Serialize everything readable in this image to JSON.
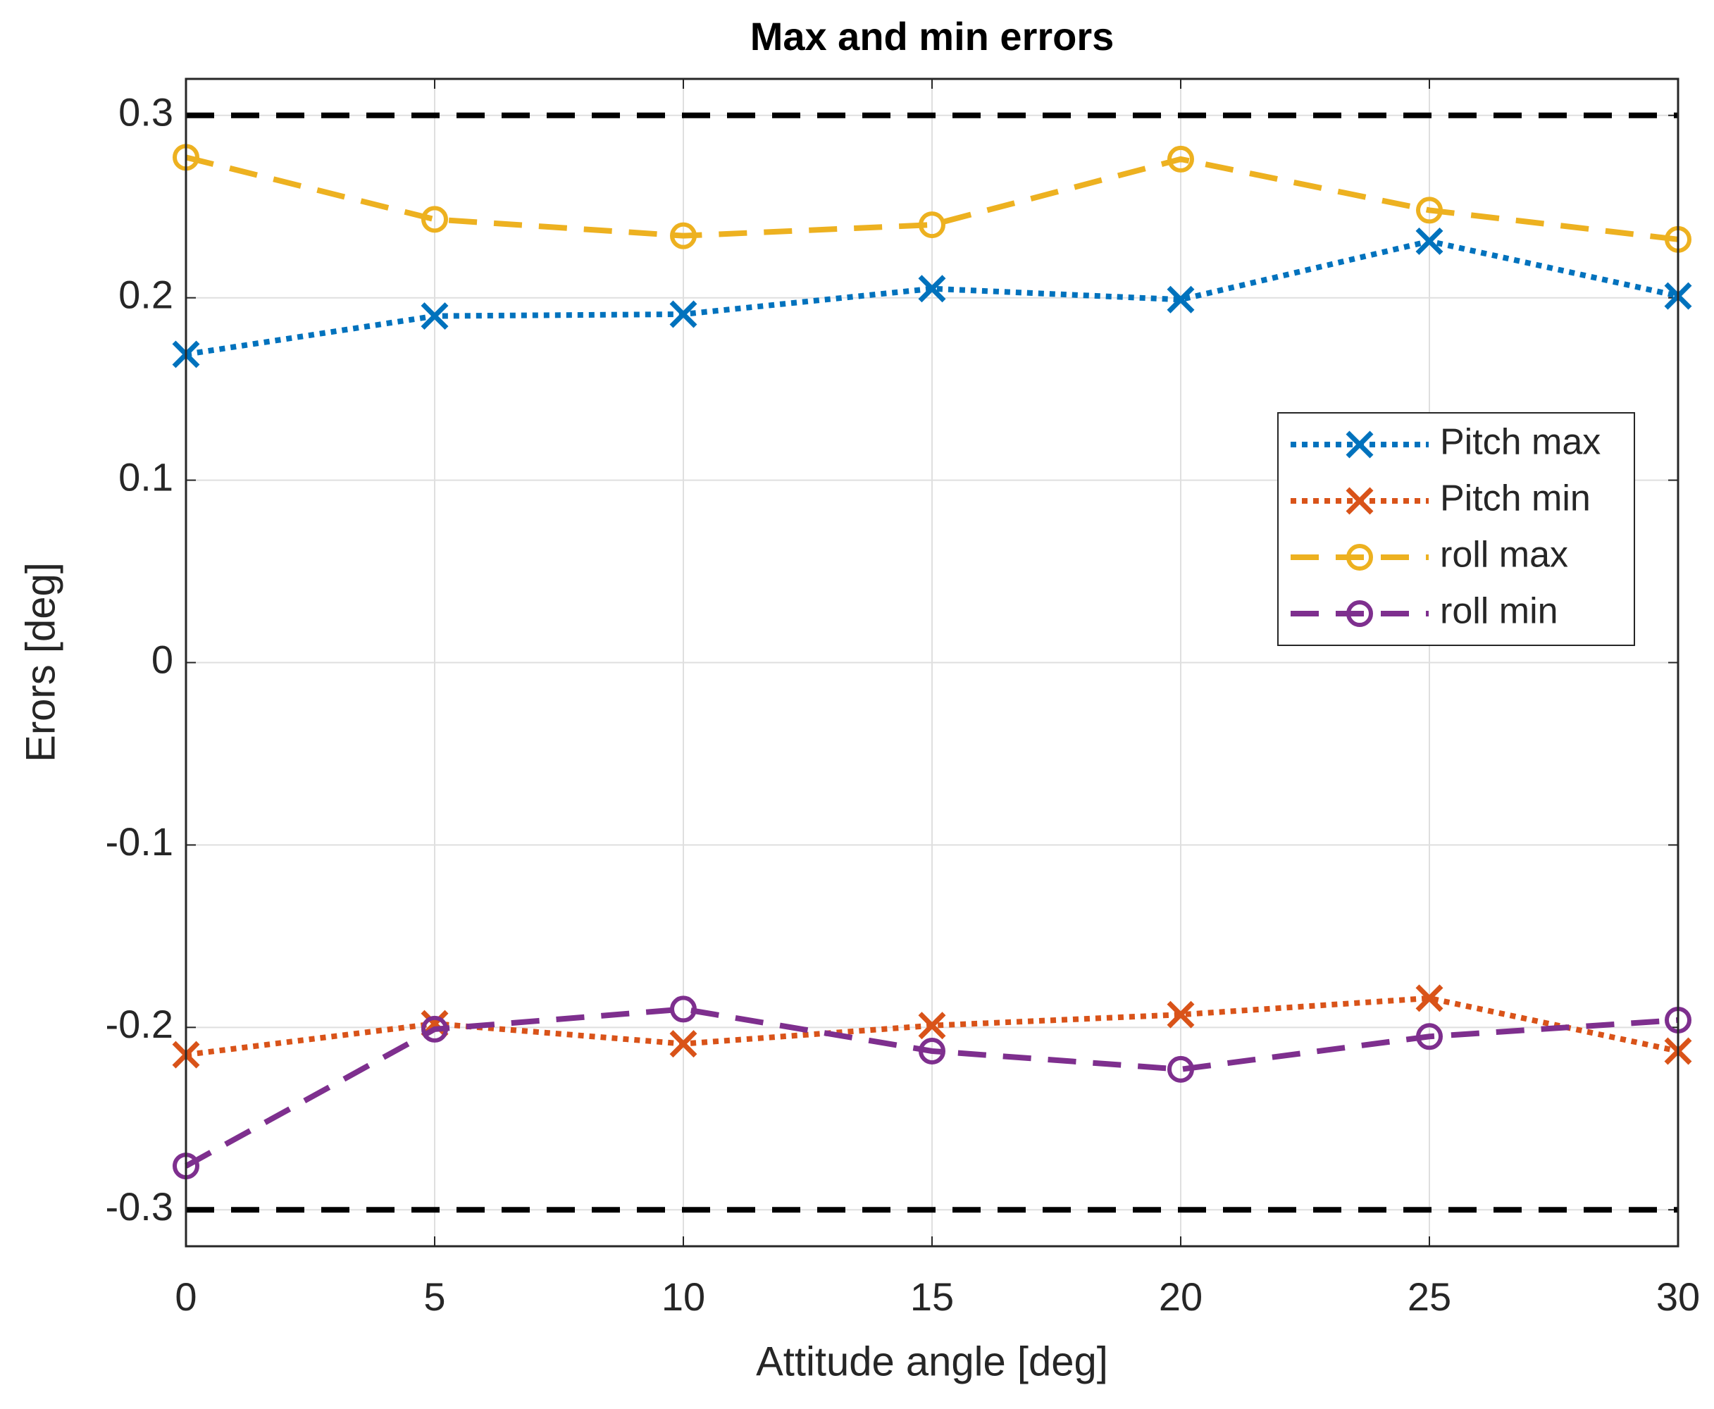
{
  "chart_data": {
    "type": "line",
    "title": "Max and min errors",
    "xlabel": "Attitude angle [deg]",
    "ylabel": "Erors [deg]",
    "x": [
      0,
      5,
      10,
      15,
      20,
      25,
      30
    ],
    "series": [
      {
        "name": "Pitch max",
        "color": "#0072bd",
        "line_style": "dotted",
        "marker": "x",
        "values": [
          0.169,
          0.19,
          0.191,
          0.205,
          0.199,
          0.231,
          0.201
        ]
      },
      {
        "name": "Pitch min",
        "color": "#d95319",
        "line_style": "dotted",
        "marker": "x",
        "values": [
          -0.215,
          -0.198,
          -0.209,
          -0.199,
          -0.193,
          -0.184,
          -0.213
        ]
      },
      {
        "name": "roll max",
        "color": "#edb120",
        "line_style": "dashed",
        "marker": "o",
        "values": [
          0.277,
          0.243,
          0.234,
          0.24,
          0.276,
          0.248,
          0.232
        ]
      },
      {
        "name": "roll min",
        "color": "#7e2f8e",
        "line_style": "dashed",
        "marker": "o",
        "values": [
          -0.276,
          -0.201,
          -0.19,
          -0.213,
          -0.223,
          -0.205,
          -0.196
        ]
      }
    ],
    "reference_lines": [
      {
        "value": 0.3,
        "color": "#000000"
      },
      {
        "value": -0.3,
        "color": "#000000"
      }
    ],
    "xlim": [
      0,
      30
    ],
    "xticks": [
      0,
      5,
      10,
      15,
      20,
      25,
      30
    ],
    "ylim": [
      -0.32,
      0.32
    ],
    "yticks": [
      -0.3,
      -0.2,
      -0.1,
      0,
      0.1,
      0.2,
      0.3
    ],
    "grid": true,
    "legend": "right"
  }
}
